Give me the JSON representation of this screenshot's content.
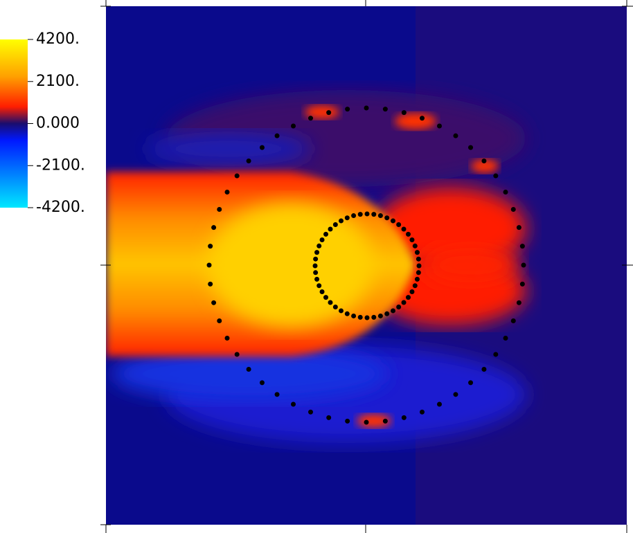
{
  "colorbar": {
    "range": [
      -4200,
      4200
    ],
    "ticks": [
      {
        "value": 4200,
        "label": "4200."
      },
      {
        "value": 2100,
        "label": "2100."
      },
      {
        "value": 0,
        "label": "0.000"
      },
      {
        "value": -2100,
        "label": "-2100."
      },
      {
        "value": -4200,
        "label": "-4200."
      }
    ]
  }
}
